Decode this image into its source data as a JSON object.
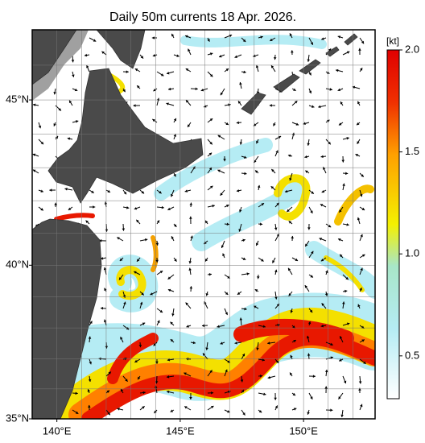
{
  "title": "Daily 50m currents 18 Apr. 2026.",
  "map": {
    "projection": "mercator",
    "lonlim": [
      139,
      152.9
    ],
    "latlim": [
      35,
      47
    ],
    "lat_ticks": [
      {
        "value": 35,
        "label": "35°N"
      },
      {
        "value": 40,
        "label": "40°N"
      },
      {
        "value": 45,
        "label": "45°N"
      }
    ],
    "lon_ticks": [
      {
        "value": 140,
        "label": "140°E"
      },
      {
        "value": 145,
        "label": "145°E"
      },
      {
        "value": 150,
        "label": "150°E"
      }
    ]
  },
  "colorbar": {
    "unit_label": "[kt]",
    "range": [
      0.29,
      2.0
    ],
    "ticks": [
      {
        "value": 0.5,
        "label": "0.5"
      },
      {
        "value": 1.0,
        "label": "1.0"
      },
      {
        "value": 1.5,
        "label": "1.5"
      },
      {
        "value": 2.0,
        "label": "2.0"
      }
    ]
  }
}
